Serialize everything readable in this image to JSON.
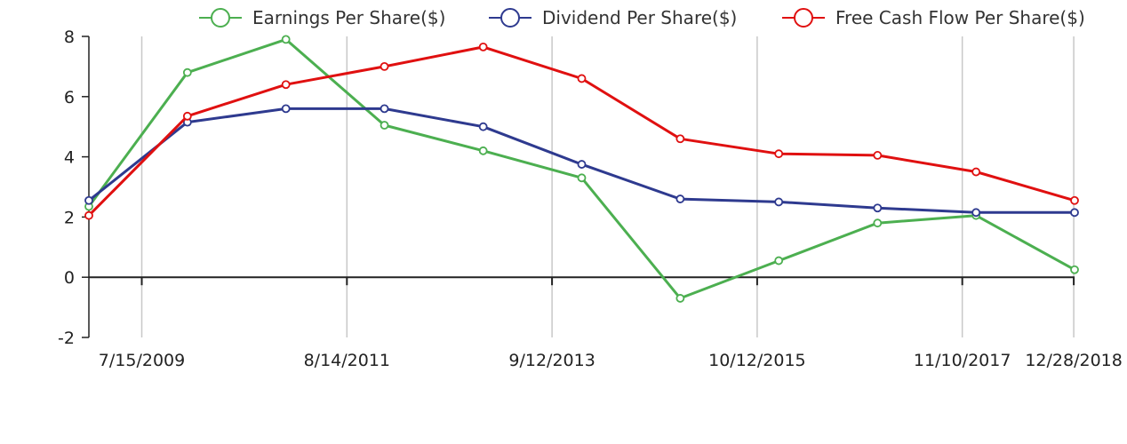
{
  "chart_data": {
    "type": "line",
    "title": "",
    "xlabel": "",
    "ylabel": "",
    "x": [
      "12/31/2008",
      "12/31/2009",
      "12/31/2010",
      "12/31/2011",
      "12/31/2012",
      "12/31/2013",
      "12/31/2014",
      "12/31/2015",
      "12/31/2016",
      "12/31/2017",
      "12/31/2018"
    ],
    "x_tick_labels": [
      "7/15/2009",
      "8/14/2011",
      "9/12/2013",
      "10/12/2015",
      "11/10/2017",
      "12/28/2018"
    ],
    "y_tick_labels": [
      "-2",
      "0",
      "2",
      "4",
      "6",
      "8"
    ],
    "ylim": [
      -2,
      8
    ],
    "grid": "vertical",
    "legend_position": "top",
    "series": [
      {
        "name": "Earnings Per Share($)",
        "color": "#4caf50",
        "values": [
          2.35,
          6.8,
          7.9,
          5.05,
          4.2,
          3.3,
          -0.7,
          0.55,
          1.8,
          2.05,
          0.25
        ]
      },
      {
        "name": "Dividend Per Share($)",
        "color": "#2e3a8f",
        "values": [
          2.55,
          5.15,
          5.6,
          5.6,
          5.0,
          3.75,
          2.6,
          2.5,
          2.3,
          2.15,
          2.15
        ]
      },
      {
        "name": "Free Cash Flow Per Share($)",
        "color": "#e01010",
        "values": [
          2.05,
          5.35,
          6.4,
          7.0,
          7.65,
          6.6,
          4.6,
          4.1,
          4.05,
          3.5,
          2.55
        ]
      }
    ]
  }
}
